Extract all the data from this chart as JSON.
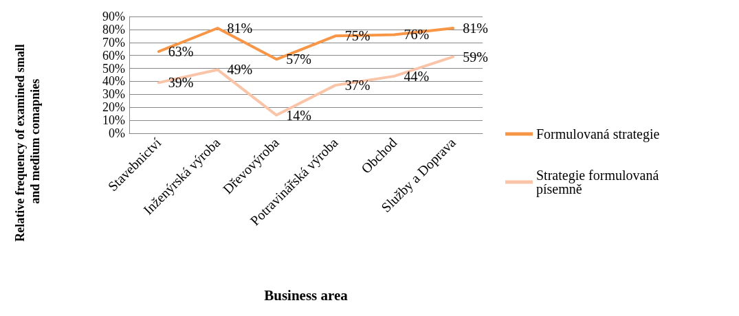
{
  "chart_data": {
    "type": "line",
    "xlabel": "Business area",
    "ylabel": "Relative frequency of examined small and medium comapnies",
    "categories": [
      "Stavebnictví",
      "Inženýrská výroba",
      "Dřevovýroba",
      "Potravinářská výroba",
      "Obchod",
      "Služby a Doprava"
    ],
    "series": [
      {
        "name": "Formulovaná strategie",
        "color": "#f79646",
        "values": [
          63,
          81,
          57,
          75,
          76,
          81
        ],
        "value_labels": [
          "63%",
          "81%",
          "57%",
          "75%",
          "76%",
          "81%"
        ]
      },
      {
        "name": "Strategie formulovaná písemně",
        "color": "#fac4a8",
        "values": [
          39,
          49,
          14,
          37,
          44,
          59
        ],
        "value_labels": [
          "39%",
          "49%",
          "14%",
          "37%",
          "44%",
          "59%"
        ]
      }
    ],
    "ylim": [
      0,
      90
    ],
    "yticks": [
      {
        "value": 0,
        "label": "0%"
      },
      {
        "value": 10,
        "label": "10%"
      },
      {
        "value": 20,
        "label": "20%"
      },
      {
        "value": 30,
        "label": "30%"
      },
      {
        "value": 40,
        "label": "40%"
      },
      {
        "value": 50,
        "label": "50%"
      },
      {
        "value": 60,
        "label": "60%"
      },
      {
        "value": 70,
        "label": "70%"
      },
      {
        "value": 80,
        "label": "80%"
      },
      {
        "value": 90,
        "label": "90%"
      }
    ],
    "grid": "y",
    "legend": "right",
    "marker": "none",
    "line_style": "solid"
  }
}
